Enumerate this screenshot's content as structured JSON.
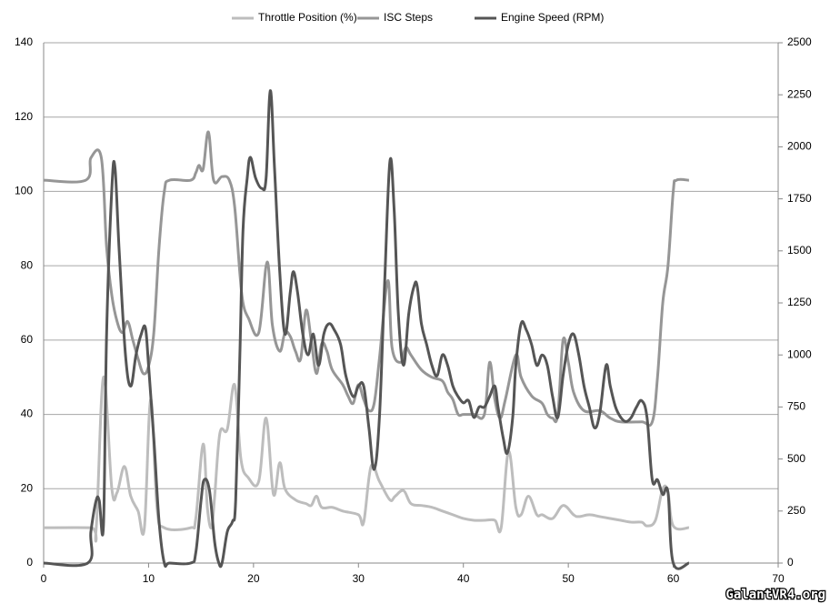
{
  "chart_data": {
    "type": "line",
    "annotation": "GalantVR4.org",
    "xlim": [
      0,
      70
    ],
    "xticks": [
      0,
      10,
      20,
      30,
      40,
      50,
      60,
      70
    ],
    "ylim": [
      0,
      140
    ],
    "yticks": [
      0,
      20,
      40,
      60,
      80,
      100,
      120,
      140
    ],
    "y2lim": [
      0,
      2500
    ],
    "y2ticks": [
      0,
      250,
      500,
      750,
      1000,
      1250,
      1500,
      1750,
      2000,
      2250,
      2500
    ],
    "grid": true,
    "legend": "top",
    "series": [
      {
        "name": "Throttle Position (%)",
        "color": "#bdbdbd",
        "x": [
          0,
          4.5,
          5,
          5.7,
          6.5,
          7,
          7.7,
          8.3,
          9,
          9.6,
          10.2,
          10.8,
          11.5,
          14,
          14.5,
          15.2,
          15.6,
          16,
          16.3,
          16.8,
          17.5,
          18.2,
          18.8,
          19.5,
          20.5,
          21.2,
          21.9,
          22.5,
          23,
          24,
          25,
          25.5,
          26,
          26.5,
          27.5,
          28.5,
          30,
          30.5,
          31.2,
          32,
          33,
          33.5,
          34.3,
          35,
          36,
          37,
          38,
          39,
          40,
          41,
          42,
          43,
          43.6,
          44.3,
          45,
          45.5,
          46.2,
          47,
          47.5,
          48.5,
          49.5,
          50.5,
          51,
          52,
          53,
          54,
          55,
          56,
          57,
          57.5,
          58.3,
          59,
          59.5,
          60,
          61.5
        ],
        "values": [
          9.5,
          9.5,
          9,
          50,
          20,
          19,
          26,
          18,
          14,
          9.5,
          44,
          15,
          9.5,
          9.5,
          12,
          32,
          15,
          9.5,
          18,
          35,
          36,
          48,
          28,
          23,
          22,
          39,
          18.5,
          27,
          20,
          17,
          16,
          15.5,
          18,
          15,
          15,
          14,
          13,
          11,
          26,
          22,
          17,
          18,
          19.5,
          16,
          15.5,
          15,
          14,
          13,
          12,
          11.5,
          11.5,
          11.5,
          9.5,
          30,
          15,
          13,
          18,
          13,
          13,
          12,
          15.5,
          13,
          12.5,
          13,
          12.5,
          12,
          11.5,
          11,
          11,
          10,
          11.5,
          20,
          19,
          10,
          9.5
        ]
      },
      {
        "name": "ISC Steps",
        "color": "#969696",
        "x": [
          0,
          4,
          4.5,
          5.5,
          6,
          6.5,
          7,
          7.5,
          8,
          8.5,
          9,
          9.5,
          10,
          10.5,
          11,
          11.5,
          12,
          14,
          14.5,
          14.8,
          15.2,
          15.7,
          16.2,
          17,
          17.7,
          18.2,
          18.7,
          19,
          19.5,
          20.5,
          21.3,
          21.8,
          22.5,
          23,
          23.5,
          24,
          24.5,
          25,
          25.5,
          26,
          26.5,
          27,
          27.5,
          28.5,
          29,
          29.5,
          30,
          30.5,
          31,
          31.5,
          32,
          32.8,
          33.2,
          34,
          34.5,
          35,
          36,
          37,
          38,
          38.5,
          39,
          39.5,
          40,
          41,
          42,
          42.5,
          43,
          43.5,
          44,
          45,
          45.5,
          46.5,
          47.5,
          48,
          48.5,
          49,
          49.5,
          50,
          50.5,
          51.5,
          53,
          54,
          55,
          57,
          58,
          58.5,
          59,
          59.5,
          60,
          60.3,
          61.5
        ],
        "values": [
          103,
          103,
          109,
          109,
          85,
          72,
          65,
          62,
          65,
          60,
          55,
          51,
          53,
          62,
          85,
          100,
          103,
          103,
          105,
          107,
          106,
          116,
          103,
          104,
          103,
          96,
          78,
          70,
          66,
          62,
          81,
          64,
          57,
          62,
          61,
          57,
          55,
          68,
          60,
          51,
          59,
          57,
          52,
          48,
          45,
          43,
          48,
          44,
          41,
          43,
          55,
          76,
          58,
          54,
          58,
          56,
          52,
          50,
          49,
          46,
          44,
          40,
          40,
          40,
          40,
          54,
          44,
          39,
          44,
          56,
          50,
          45,
          43,
          40,
          39,
          40,
          60,
          54,
          46,
          41,
          41,
          39,
          38,
          38,
          38,
          50,
          70,
          80,
          100,
          103,
          103
        ]
      },
      {
        "name": "Engine Speed (RPM)",
        "color": "#555555",
        "axis": "y2",
        "x": [
          0,
          4.2,
          4.5,
          5,
          5.3,
          5.7,
          6,
          6.5,
          6.8,
          7.2,
          7.8,
          8.3,
          8.8,
          9.3,
          9.7,
          10,
          10.5,
          11,
          11.5,
          12,
          14,
          14.5,
          15,
          15.3,
          15.8,
          16.3,
          16.7,
          17,
          17.5,
          18,
          18.3,
          18.7,
          19,
          19.4,
          19.7,
          20.2,
          20.8,
          21.2,
          21.6,
          22,
          22.5,
          23,
          23.5,
          23.8,
          24.2,
          24.7,
          25.2,
          25.7,
          26.2,
          26.7,
          27.2,
          27.7,
          28.3,
          28.8,
          29.5,
          30,
          30.5,
          31,
          31.5,
          32,
          32.5,
          33,
          33.4,
          33.8,
          34.3,
          34.8,
          35.3,
          35.6,
          36,
          36.5,
          37,
          37.5,
          38,
          38.5,
          39,
          39.5,
          40,
          40.5,
          41,
          41.5,
          42,
          42.5,
          43,
          43.3,
          43.8,
          44.2,
          44.7,
          45,
          45.5,
          46,
          46.5,
          47,
          47.5,
          48,
          48.5,
          49,
          49.5,
          50,
          50.5,
          51,
          51.5,
          52,
          52.5,
          53,
          53.6,
          54,
          54.5,
          55,
          55.5,
          56,
          56.5,
          57,
          57.5,
          58,
          58.5,
          59,
          59.5,
          60,
          61.5
        ],
        "values": [
          0,
          0,
          150,
          300,
          300,
          180,
          1100,
          1800,
          1900,
          1500,
          1000,
          850,
          1000,
          1100,
          1130,
          950,
          600,
          200,
          0,
          0,
          0,
          50,
          300,
          400,
          350,
          100,
          0,
          0,
          150,
          200,
          300,
          1000,
          1600,
          1850,
          1950,
          1850,
          1800,
          1850,
          2270,
          1900,
          1400,
          1100,
          1300,
          1400,
          1300,
          1100,
          1000,
          1100,
          950,
          1100,
          1150,
          1120,
          1050,
          900,
          800,
          850,
          850,
          650,
          450,
          700,
          1350,
          1930,
          1700,
          1200,
          950,
          1200,
          1330,
          1330,
          1150,
          1050,
          950,
          900,
          1000,
          950,
          850,
          800,
          770,
          780,
          700,
          750,
          750,
          800,
          850,
          750,
          600,
          530,
          700,
          950,
          1150,
          1120,
          1050,
          950,
          1000,
          950,
          800,
          700,
          900,
          1050,
          1100,
          1000,
          850,
          750,
          650,
          720,
          950,
          850,
          750,
          700,
          680,
          700,
          750,
          780,
          700,
          400,
          400,
          330,
          340,
          0,
          0
        ]
      }
    ]
  }
}
